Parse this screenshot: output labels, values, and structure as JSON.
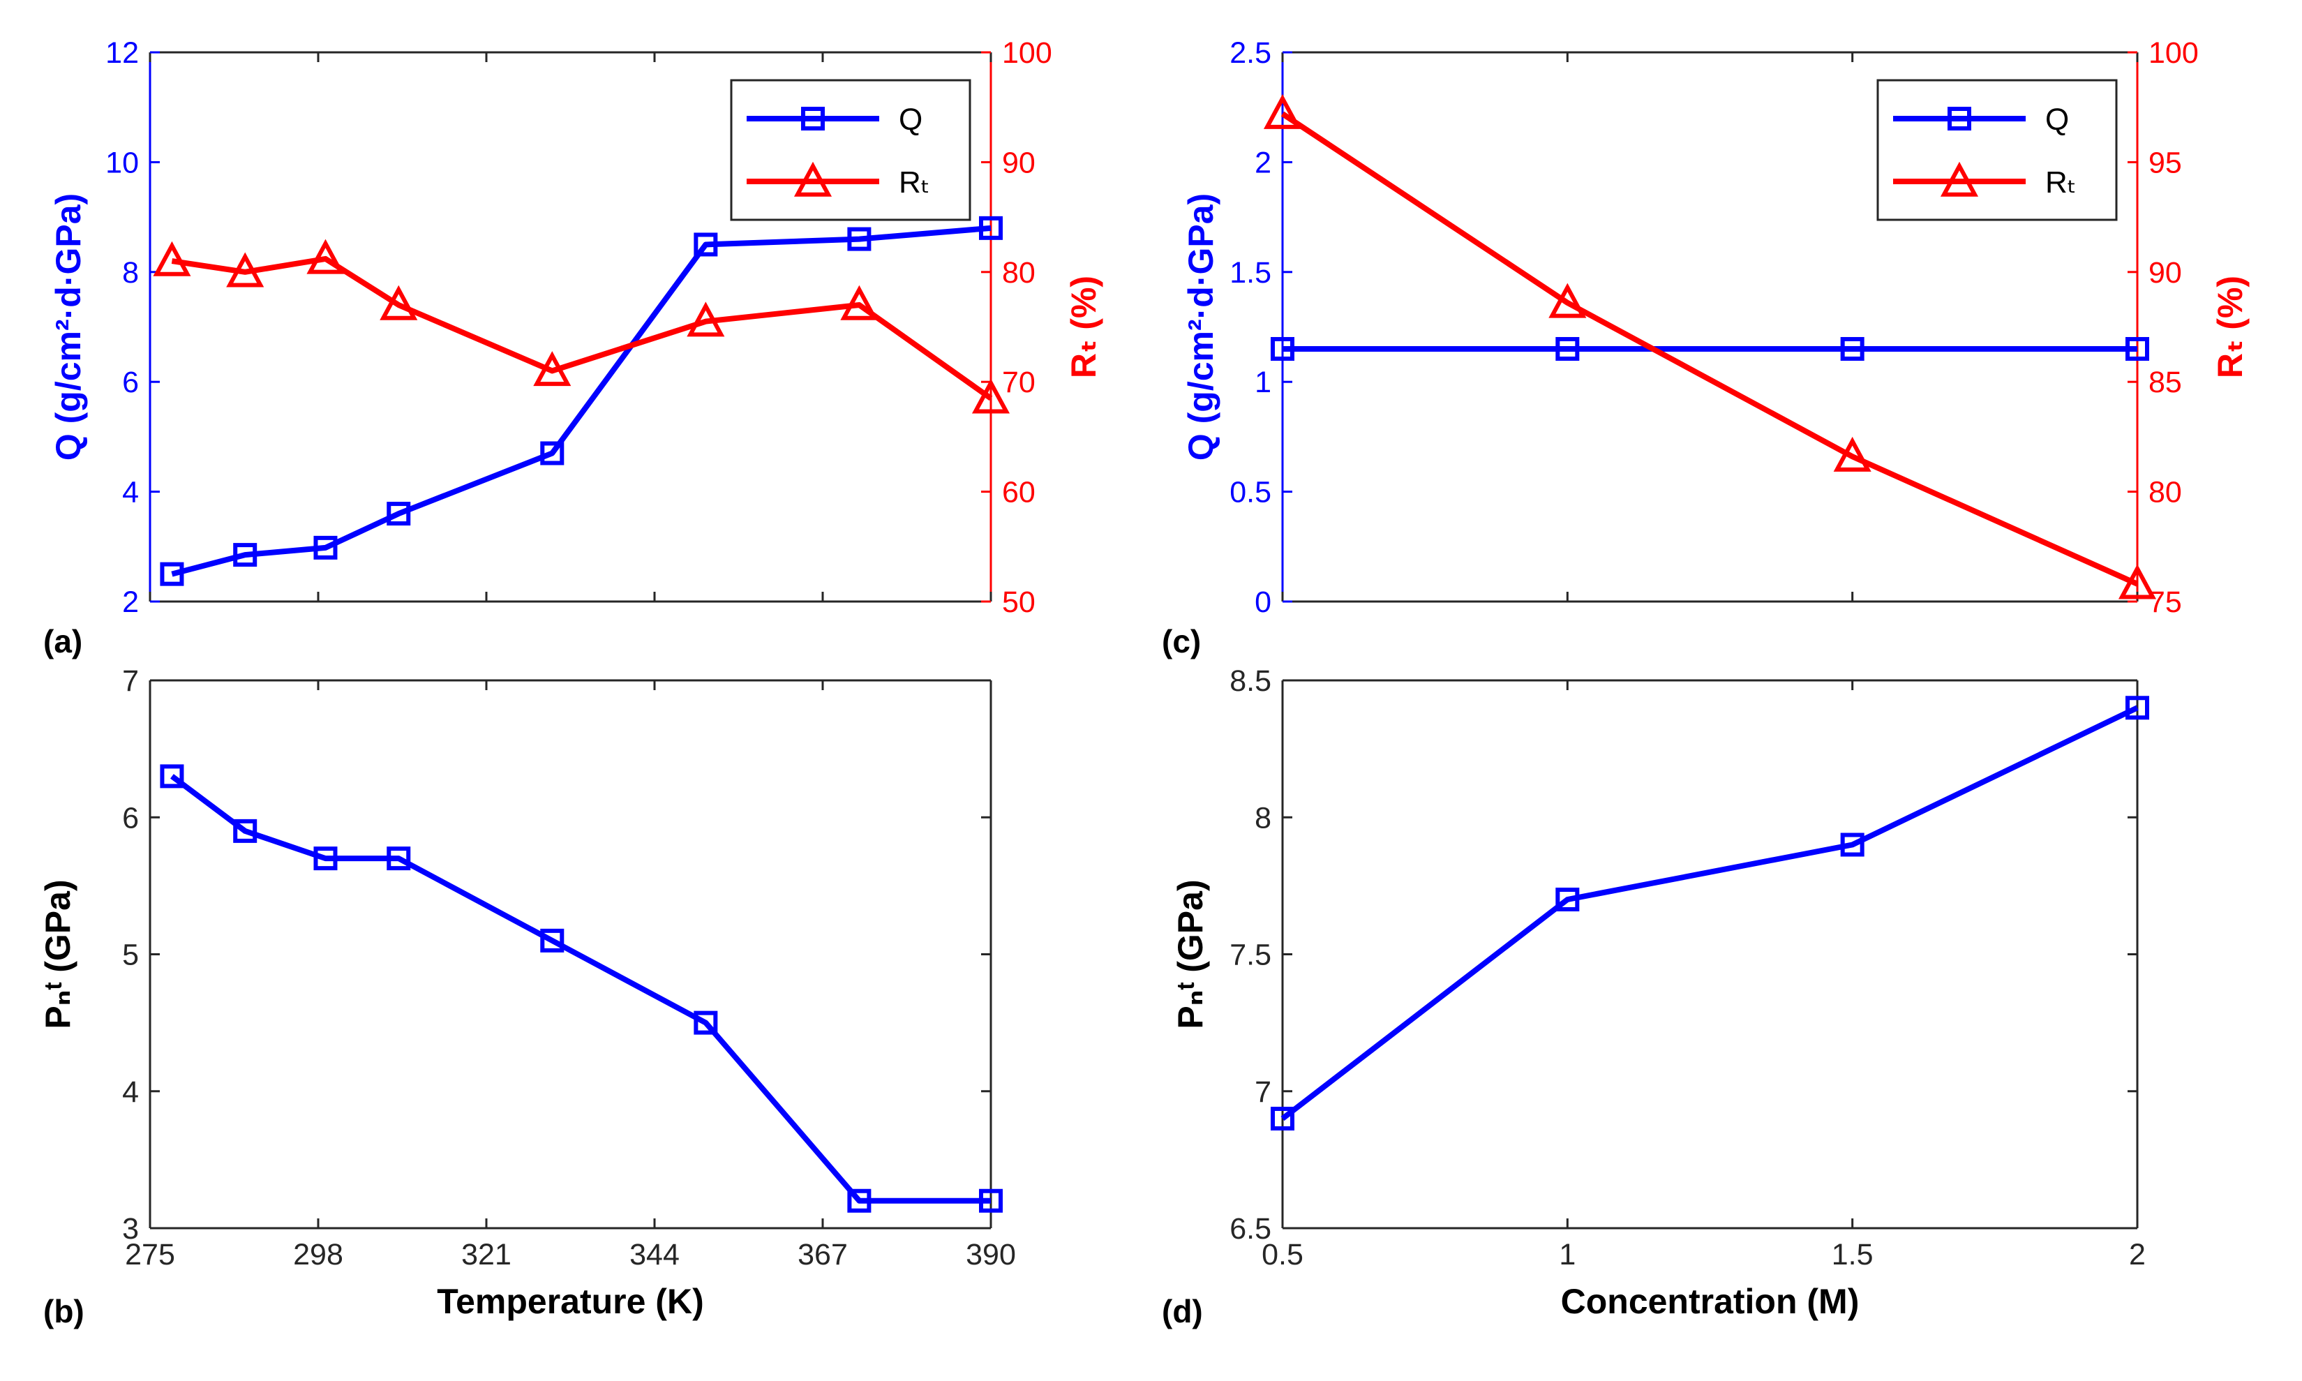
{
  "chart_data": [
    {
      "panel": "(a)",
      "type": "line",
      "dual_axis": true,
      "x": [
        278,
        288,
        299,
        309,
        330,
        351,
        372,
        390
      ],
      "xlim": [
        275,
        390
      ],
      "x_ticks": [
        275,
        298,
        321,
        344,
        367,
        390
      ],
      "xlabel": "",
      "ylim_left": [
        2,
        12
      ],
      "y_ticks_left": [
        2,
        4,
        6,
        8,
        10,
        12
      ],
      "ylabel_left": "Q (g/cm²·d·GPa)",
      "ylim_right": [
        50,
        100
      ],
      "y_ticks_right": [
        50,
        60,
        70,
        80,
        90,
        100
      ],
      "ylabel_right": "Rₜ (%)",
      "legend_position": "top-right",
      "series": [
        {
          "name": "Q",
          "axis": "left",
          "color": "#0000ff",
          "marker": "square",
          "values": [
            2.5,
            2.85,
            2.98,
            3.6,
            4.7,
            8.5,
            8.6,
            8.8
          ]
        },
        {
          "name": "Rₜ",
          "axis": "right",
          "color": "#ff0000",
          "marker": "triangle",
          "values": [
            81.0,
            80.0,
            81.2,
            77.0,
            71.0,
            75.5,
            77.0,
            68.5
          ]
        }
      ]
    },
    {
      "panel": "(b)",
      "type": "line",
      "x": [
        278,
        288,
        299,
        309,
        330,
        351,
        372,
        390
      ],
      "xlim": [
        275,
        390
      ],
      "x_ticks": [
        275,
        298,
        321,
        344,
        367,
        390
      ],
      "xlabel": "Temperature (K)",
      "ylim": [
        3,
        7
      ],
      "y_ticks": [
        3,
        4,
        5,
        6,
        7
      ],
      "ylabel": "Pₙᵗ (GPa)",
      "series": [
        {
          "name": "P",
          "color": "#0000ff",
          "marker": "square",
          "values": [
            6.3,
            5.9,
            5.7,
            5.7,
            5.1,
            4.5,
            3.2,
            3.2
          ]
        }
      ]
    },
    {
      "panel": "(c)",
      "type": "line",
      "dual_axis": true,
      "x": [
        0.5,
        1,
        1.5,
        2
      ],
      "xlim": [
        0.5,
        2
      ],
      "x_ticks": [
        0.5,
        1,
        1.5,
        2
      ],
      "xlabel": "",
      "ylim_left": [
        0,
        2.5
      ],
      "y_ticks_left": [
        0,
        0.5,
        1,
        1.5,
        2,
        2.5
      ],
      "ylabel_left": "Q (g/cm²·d·GPa)",
      "ylim_right": [
        75,
        100
      ],
      "y_ticks_right": [
        75,
        80,
        85,
        90,
        95,
        100
      ],
      "ylabel_right": "Rₜ (%)",
      "legend_position": "top-right",
      "series": [
        {
          "name": "Q",
          "axis": "left",
          "color": "#0000ff",
          "marker": "square",
          "values": [
            1.15,
            1.15,
            1.15,
            1.15
          ]
        },
        {
          "name": "Rₜ",
          "axis": "right",
          "color": "#ff0000",
          "marker": "triangle",
          "values": [
            97.2,
            88.6,
            81.6,
            75.8
          ]
        }
      ]
    },
    {
      "panel": "(d)",
      "type": "line",
      "x": [
        0.5,
        1,
        1.5,
        2
      ],
      "xlim": [
        0.5,
        2
      ],
      "x_ticks": [
        0.5,
        1,
        1.5,
        2
      ],
      "xlabel": "Concentration (M)",
      "ylim": [
        6.5,
        8.5
      ],
      "y_ticks": [
        6.5,
        7,
        7.5,
        8,
        8.5
      ],
      "ylabel": "Pₙᵗ (GPa)",
      "series": [
        {
          "name": "P",
          "color": "#0000ff",
          "marker": "square",
          "values": [
            6.9,
            7.7,
            7.9,
            8.4
          ]
        }
      ]
    }
  ]
}
